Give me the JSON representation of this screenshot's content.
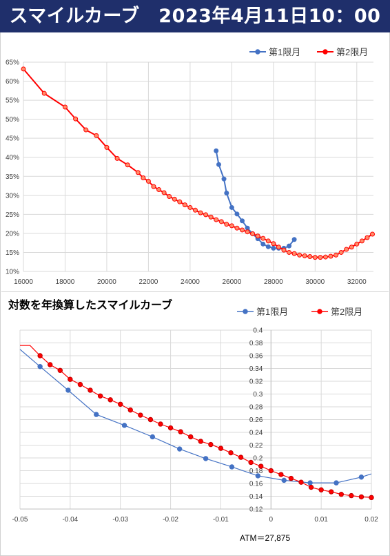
{
  "title": "スマイルカーブ　2023年4月11日10：00",
  "charts": {
    "top": {
      "legend": [
        "第1限月",
        "第2限月"
      ],
      "y_ticks": [
        "65%",
        "60%",
        "55%",
        "50%",
        "45%",
        "40%",
        "35%",
        "30%",
        "25%",
        "20%",
        "15%",
        "10%"
      ],
      "x_ticks": [
        "16000",
        "18000",
        "20000",
        "22000",
        "24000",
        "26000",
        "28000",
        "30000",
        "32000"
      ]
    },
    "bottom": {
      "title": "対数を年換算したスマイルカーブ",
      "legend": [
        "第1限月",
        "第2限月"
      ],
      "y_ticks": [
        "0.4",
        "0.38",
        "0.36",
        "0.34",
        "0.32",
        "0.3",
        "0.28",
        "0.26",
        "0.24",
        "0.22",
        "0.2",
        "0.18",
        "0.16",
        "0.14",
        "0.12"
      ],
      "x_ticks": [
        "-0.05",
        "-0.04",
        "-0.03",
        "-0.02",
        "-0.01",
        "0",
        "0.01",
        "0.02"
      ],
      "atm_label": "ATM＝27,875"
    }
  },
  "chart_data": [
    {
      "type": "line",
      "xlim": [
        16000,
        32800
      ],
      "ylim": [
        0.1,
        0.65
      ],
      "series": [
        {
          "name": "第1限月",
          "color": "#4472c4",
          "x": [
            25250,
            25375,
            25625,
            25750,
            26000,
            26250,
            26500,
            26750,
            27000,
            27250,
            27500,
            27750,
            28000,
            28250,
            28500,
            28750,
            29000
          ],
          "y": [
            0.417,
            0.381,
            0.343,
            0.306,
            0.268,
            0.251,
            0.233,
            0.214,
            0.199,
            0.186,
            0.172,
            0.165,
            0.161,
            0.161,
            0.161,
            0.167,
            0.184
          ]
        },
        {
          "name": "第2限月",
          "color": "#ff0000",
          "x": [
            16000,
            17000,
            18000,
            18500,
            19000,
            19500,
            20000,
            20500,
            21000,
            21500,
            21750,
            22000,
            22250,
            22500,
            22750,
            23000,
            23250,
            23500,
            23750,
            24000,
            24250,
            24500,
            24750,
            25000,
            25250,
            25500,
            25750,
            26000,
            26250,
            26500,
            26750,
            27000,
            27250,
            27500,
            27750,
            28000,
            28250,
            28500,
            28750,
            29000,
            29250,
            29500,
            29750,
            30000,
            30250,
            30500,
            30750,
            31000,
            31250,
            31500,
            31750,
            32000,
            32250,
            32500,
            32750
          ],
          "y": [
            0.632,
            0.568,
            0.532,
            0.501,
            0.472,
            0.457,
            0.426,
            0.397,
            0.38,
            0.36,
            0.346,
            0.337,
            0.323,
            0.315,
            0.307,
            0.297,
            0.29,
            0.283,
            0.275,
            0.268,
            0.261,
            0.254,
            0.249,
            0.243,
            0.236,
            0.231,
            0.224,
            0.22,
            0.214,
            0.209,
            0.204,
            0.199,
            0.193,
            0.187,
            0.18,
            0.173,
            0.164,
            0.156,
            0.15,
            0.147,
            0.143,
            0.141,
            0.139,
            0.137,
            0.137,
            0.138,
            0.14,
            0.143,
            0.15,
            0.158,
            0.164,
            0.172,
            0.18,
            0.189,
            0.198
          ]
        }
      ]
    },
    {
      "type": "line",
      "xlim": [
        -0.05,
        0.02
      ],
      "ylim": [
        0.12,
        0.4
      ],
      "series": [
        {
          "name": "第1限月",
          "color": "#4472c4",
          "x": [
            -0.046,
            -0.0404,
            -0.0348,
            -0.0292,
            -0.0236,
            -0.0182,
            -0.013,
            -0.0078,
            -0.0026,
            0.0026,
            0.0078,
            0.013,
            0.018
          ],
          "y": [
            0.343,
            0.306,
            0.268,
            0.251,
            0.233,
            0.214,
            0.199,
            0.186,
            0.172,
            0.165,
            0.161,
            0.161,
            0.17
          ]
        },
        {
          "name": "第2限月",
          "color": "#ff0000",
          "x": [
            -0.048,
            -0.046,
            -0.044,
            -0.042,
            -0.04,
            -0.038,
            -0.036,
            -0.034,
            -0.032,
            -0.03,
            -0.028,
            -0.026,
            -0.024,
            -0.022,
            -0.02,
            -0.018,
            -0.016,
            -0.014,
            -0.012,
            -0.01,
            -0.008,
            -0.006,
            -0.004,
            -0.002,
            0.0,
            0.002,
            0.004,
            0.006,
            0.008,
            0.01,
            0.012,
            0.014,
            0.016,
            0.018,
            0.02
          ],
          "y": [
            0.376,
            0.36,
            0.346,
            0.337,
            0.323,
            0.315,
            0.306,
            0.297,
            0.291,
            0.284,
            0.275,
            0.267,
            0.26,
            0.253,
            0.247,
            0.241,
            0.233,
            0.226,
            0.221,
            0.215,
            0.208,
            0.201,
            0.193,
            0.187,
            0.18,
            0.174,
            0.168,
            0.162,
            0.154,
            0.15,
            0.147,
            0.143,
            0.141,
            0.139,
            0.138
          ]
        }
      ]
    }
  ]
}
